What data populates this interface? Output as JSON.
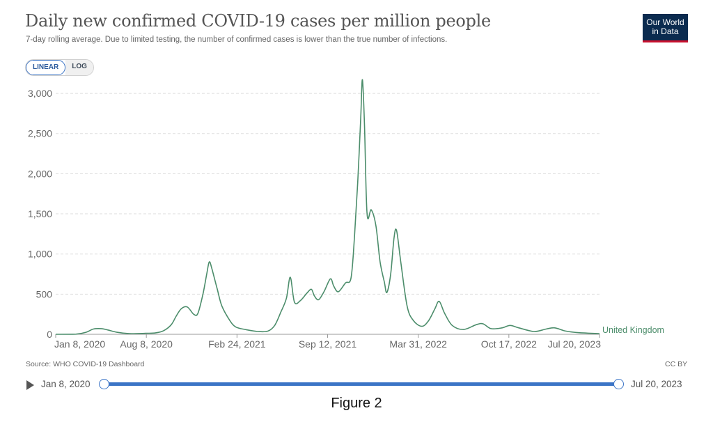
{
  "header": {
    "title": "Daily new confirmed COVID-19 cases per million people",
    "subtitle": "7-day rolling average. Due to limited testing, the number of confirmed cases is lower than the true number of infections.",
    "logo_line1": "Our World",
    "logo_line2": "in Data"
  },
  "scale_toggle": {
    "linear": "LINEAR",
    "log": "LOG",
    "active": "LINEAR"
  },
  "footer": {
    "source": "Source: WHO COVID-19 Dashboard",
    "license": "CC BY"
  },
  "timeline": {
    "start_label": "Jan 8, 2020",
    "end_label": "Jul 20, 2023",
    "start_fraction": 0.0,
    "end_fraction": 1.0
  },
  "caption": "Figure 2",
  "colors": {
    "series": "#4c8d6b",
    "accent": "#3b74c6",
    "logo_bg": "#0b2b4f",
    "logo_bar": "#c8102e"
  },
  "chart_data": {
    "type": "line",
    "title": "Daily new confirmed COVID-19 cases per million people",
    "x_axis_ticks": [
      "Jan 8, 2020",
      "Aug 8, 2020",
      "Feb 24, 2021",
      "Sep 12, 2021",
      "Mar 31, 2022",
      "Oct 17, 2022",
      "Jul 20, 2023"
    ],
    "x_range": [
      "2020-01-08",
      "2023-07-20"
    ],
    "y_ticks": [
      "0",
      "500",
      "1,000",
      "1,500",
      "2,000",
      "2,500",
      "3,000"
    ],
    "ylim": [
      0,
      3200
    ],
    "grid": "horizontal dashed",
    "series": [
      {
        "name": "United Kingdom",
        "points": [
          [
            "2020-01-08",
            0
          ],
          [
            "2020-02-25",
            2
          ],
          [
            "2020-03-20",
            25
          ],
          [
            "2020-04-06",
            65
          ],
          [
            "2020-04-25",
            70
          ],
          [
            "2020-05-10",
            55
          ],
          [
            "2020-06-01",
            25
          ],
          [
            "2020-07-01",
            8
          ],
          [
            "2020-08-08",
            12
          ],
          [
            "2020-09-01",
            18
          ],
          [
            "2020-09-20",
            45
          ],
          [
            "2020-10-08",
            120
          ],
          [
            "2020-10-20",
            230
          ],
          [
            "2020-11-01",
            320
          ],
          [
            "2020-11-15",
            340
          ],
          [
            "2020-11-30",
            250
          ],
          [
            "2020-12-10",
            260
          ],
          [
            "2020-12-22",
            500
          ],
          [
            "2020-12-31",
            750
          ],
          [
            "2021-01-06",
            900
          ],
          [
            "2021-01-12",
            820
          ],
          [
            "2021-01-25",
            560
          ],
          [
            "2021-02-05",
            350
          ],
          [
            "2021-02-24",
            170
          ],
          [
            "2021-03-10",
            90
          ],
          [
            "2021-04-01",
            60
          ],
          [
            "2021-05-01",
            35
          ],
          [
            "2021-05-25",
            40
          ],
          [
            "2021-06-10",
            110
          ],
          [
            "2021-06-25",
            280
          ],
          [
            "2021-07-08",
            450
          ],
          [
            "2021-07-17",
            710
          ],
          [
            "2021-07-27",
            400
          ],
          [
            "2021-08-10",
            420
          ],
          [
            "2021-08-25",
            510
          ],
          [
            "2021-09-05",
            560
          ],
          [
            "2021-09-12",
            480
          ],
          [
            "2021-09-22",
            430
          ],
          [
            "2021-10-05",
            530
          ],
          [
            "2021-10-20",
            690
          ],
          [
            "2021-10-28",
            600
          ],
          [
            "2021-11-08",
            530
          ],
          [
            "2021-11-25",
            640
          ],
          [
            "2021-12-08",
            700
          ],
          [
            "2021-12-16",
            1200
          ],
          [
            "2021-12-24",
            1900
          ],
          [
            "2021-12-31",
            2700
          ],
          [
            "2022-01-04",
            3170
          ],
          [
            "2022-01-09",
            2600
          ],
          [
            "2022-01-15",
            1500
          ],
          [
            "2022-01-25",
            1550
          ],
          [
            "2022-02-05",
            1350
          ],
          [
            "2022-02-15",
            900
          ],
          [
            "2022-02-25",
            650
          ],
          [
            "2022-03-03",
            520
          ],
          [
            "2022-03-12",
            750
          ],
          [
            "2022-03-20",
            1200
          ],
          [
            "2022-03-26",
            1290
          ],
          [
            "2022-04-05",
            900
          ],
          [
            "2022-04-20",
            350
          ],
          [
            "2022-05-05",
            170
          ],
          [
            "2022-05-25",
            100
          ],
          [
            "2022-06-10",
            170
          ],
          [
            "2022-06-25",
            320
          ],
          [
            "2022-07-05",
            410
          ],
          [
            "2022-07-18",
            260
          ],
          [
            "2022-08-05",
            110
          ],
          [
            "2022-09-01",
            60
          ],
          [
            "2022-10-01",
            120
          ],
          [
            "2022-10-17",
            130
          ],
          [
            "2022-11-05",
            70
          ],
          [
            "2022-12-01",
            80
          ],
          [
            "2022-12-20",
            110
          ],
          [
            "2023-01-10",
            80
          ],
          [
            "2023-02-15",
            35
          ],
          [
            "2023-03-15",
            65
          ],
          [
            "2023-04-05",
            80
          ],
          [
            "2023-05-01",
            40
          ],
          [
            "2023-06-01",
            20
          ],
          [
            "2023-07-20",
            8
          ]
        ]
      }
    ]
  }
}
